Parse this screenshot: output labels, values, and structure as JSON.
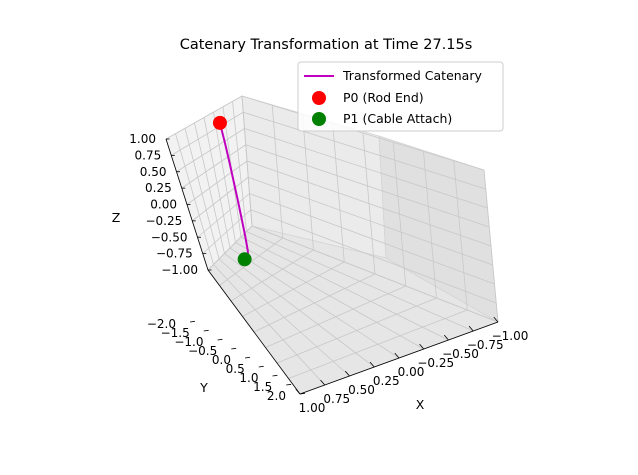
{
  "chart_data": {
    "type": "line3d",
    "title": "Catenary Transformation at Time 27.15s",
    "xlabel": "X",
    "ylabel": "Y",
    "zlabel": "Z",
    "xlim": [
      -1.0,
      1.0
    ],
    "ylim": [
      -2.0,
      2.0
    ],
    "zlim": [
      -1.0,
      1.0
    ],
    "xticks": [
      "−1.00",
      "−0.75",
      "−0.50",
      "−0.25",
      "0.00",
      "0.25",
      "0.50",
      "0.75",
      "1.00"
    ],
    "yticks": [
      "−2.0",
      "−1.5",
      "−1.0",
      "−0.5",
      "0.0",
      "0.5",
      "1.0",
      "1.5",
      "2.0"
    ],
    "zticks": [
      "−1.00",
      "−0.75",
      "−0.50",
      "−0.25",
      "0.00",
      "0.25",
      "0.50",
      "0.75",
      "1.00"
    ],
    "grid": true,
    "legend_position": "top-right",
    "series": [
      {
        "name": "Transformed Catenary",
        "kind": "line",
        "color": "#bf00bf",
        "points": [
          [
            0.85,
            -1.8,
            0.75
          ],
          [
            0.82,
            -1.65,
            0.5
          ],
          [
            0.8,
            -1.5,
            0.25
          ],
          [
            0.79,
            -1.35,
            0.0
          ],
          [
            0.78,
            -1.2,
            -0.25
          ],
          [
            0.775,
            -1.05,
            -0.5
          ],
          [
            0.77,
            -0.9,
            -0.75
          ],
          [
            0.77,
            -0.75,
            -0.95
          ],
          [
            0.77,
            -0.6,
            -1.05
          ],
          [
            0.78,
            -0.5,
            -1.08
          ],
          [
            0.8,
            -0.4,
            -1.05
          ]
        ]
      },
      {
        "name": "P0 (Rod End)",
        "kind": "point",
        "color": "#ff0000",
        "points": [
          [
            0.85,
            -1.8,
            0.75
          ]
        ]
      },
      {
        "name": "P1 (Cable Attach)",
        "kind": "point",
        "color": "#008000",
        "points": [
          [
            0.8,
            -0.4,
            -1.05
          ]
        ]
      }
    ]
  }
}
